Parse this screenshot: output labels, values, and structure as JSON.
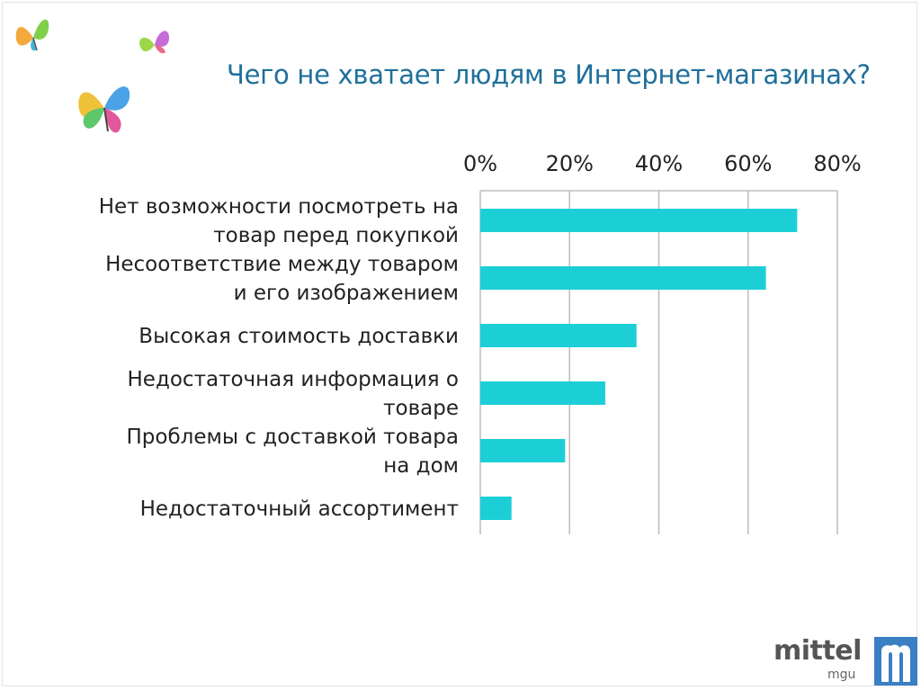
{
  "slide": {
    "title": "Чего не хватает людям в Интернет-магазинах?"
  },
  "logo": {
    "word": "mittel",
    "sub": "mgu",
    "mark": "m-logo-icon",
    "color": "#3a7fc4"
  },
  "decorations": [
    "butterfly-icon",
    "butterfly-icon",
    "butterfly-icon"
  ],
  "chart_data": {
    "type": "bar",
    "orientation": "horizontal",
    "categories": [
      [
        "Нет возможности посмотреть на",
        "товар перед покупкой"
      ],
      [
        "Несоответствие между товаром",
        "и его изображением"
      ],
      [
        "Высокая стоимость доставки"
      ],
      [
        "Недостаточная информация о",
        "товаре"
      ],
      [
        "Проблемы с доставкой товара",
        "на дом"
      ],
      [
        "Недостаточный ассортимент"
      ]
    ],
    "values": [
      71,
      64,
      35,
      28,
      19,
      7
    ],
    "xlim": [
      0,
      80
    ],
    "ticks": [
      0,
      20,
      40,
      60,
      80
    ],
    "tick_labels": [
      "0%",
      "20%",
      "40%",
      "60%",
      "80%"
    ],
    "axis_position": "top",
    "grid": true,
    "bar_color": "#1ccfd6",
    "grid_color": "#bdbdbd"
  }
}
